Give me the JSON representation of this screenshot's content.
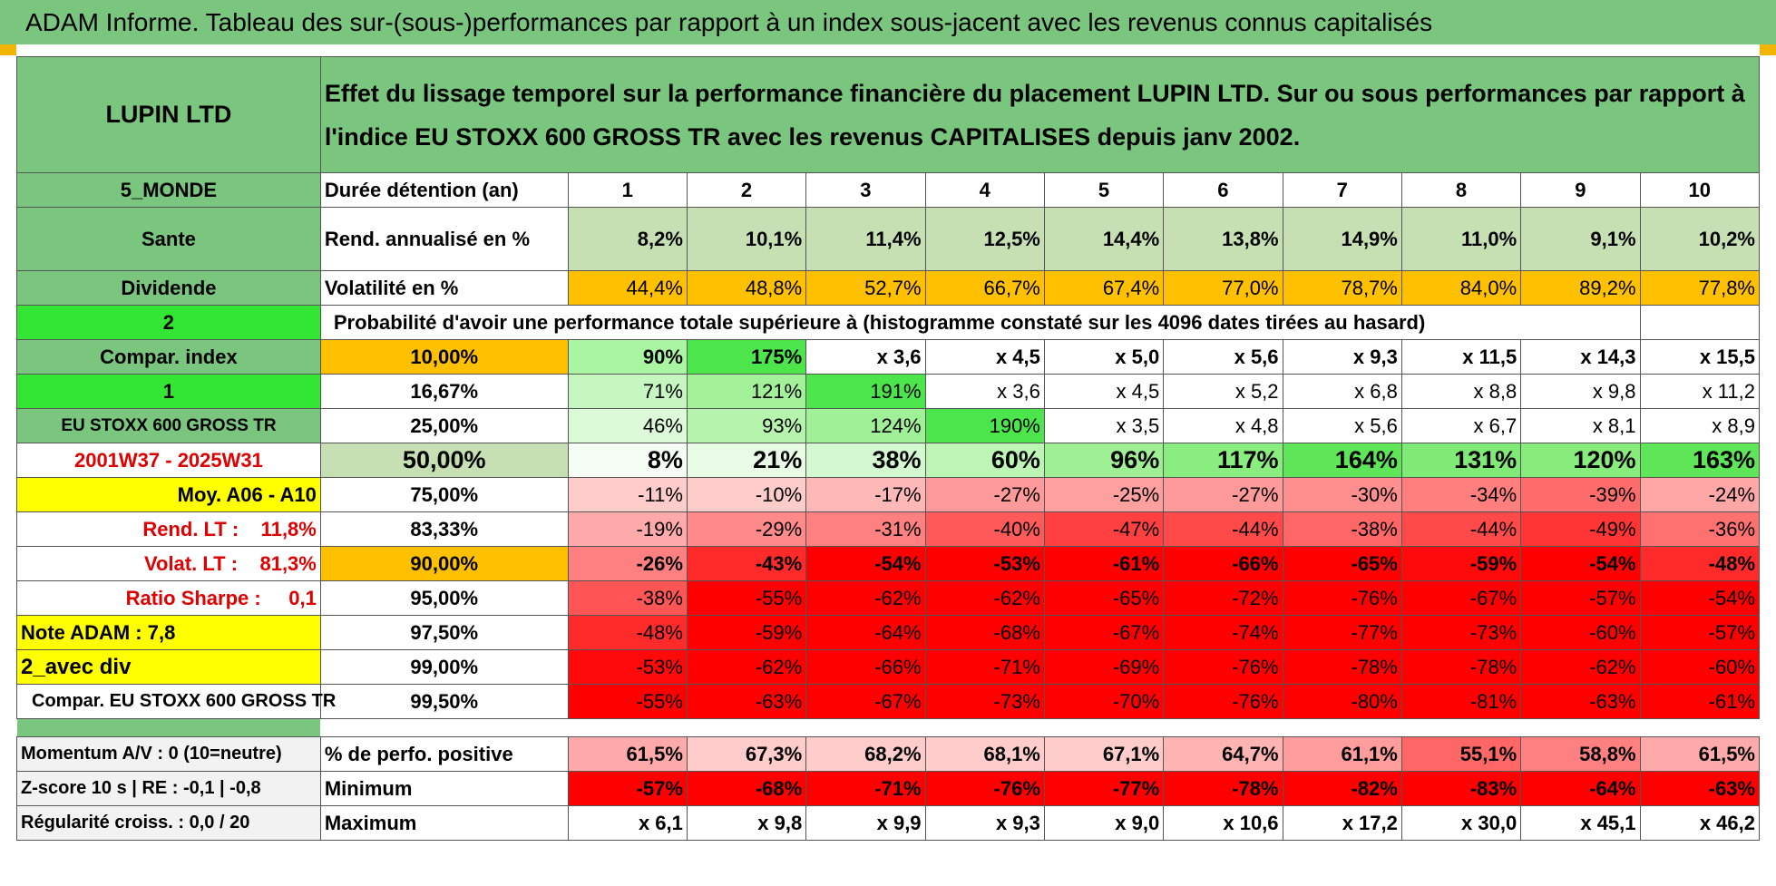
{
  "title": "ADAM Informe. Tableau des sur-(sous-)performances par rapport à un index sous-jacent avec les revenus connus capitalisés",
  "header": {
    "name": "LUPIN LTD",
    "description": "Effet du lissage temporel sur la performance financière du placement LUPIN LTD. Sur ou sous performances par rapport à l'indice EU STOXX 600 GROSS TR avec les revenus CAPITALISES depuis janv 2002."
  },
  "left_labels": {
    "region": "5_MONDE",
    "sector": "Sante",
    "type": "Dividende",
    "level_1": "2",
    "compar_index": "Compar. index",
    "level_2": "1",
    "index_name": "EU STOXX 600 GROSS TR",
    "period": "2001W37 - 2025W31",
    "moy": "Moy. A06 - A10",
    "rend_lt": "Rend. LT :    11,8%",
    "volat_lt": "Volat. LT :    81,3%",
    "sharpe": "Ratio Sharpe :     0,1",
    "note": "Note ADAM : 7,8",
    "avec_div": "2_avec div",
    "compar_full": "Compar. EU STOXX 600 GROSS TR"
  },
  "row_labels": {
    "duration": "Durée détention (an)",
    "rend": "Rend. annualisé en %",
    "vol": "Volatilité en %",
    "proba": "Probabilité d'avoir une performance totale supérieure à (histogramme constaté sur les 4096 dates tirées au hasard)"
  },
  "years": [
    "1",
    "2",
    "3",
    "4",
    "5",
    "6",
    "7",
    "8",
    "9",
    "10"
  ],
  "rend_values": [
    "8,2%",
    "10,1%",
    "11,4%",
    "12,5%",
    "14,4%",
    "13,8%",
    "14,9%",
    "11,0%",
    "9,1%",
    "10,2%"
  ],
  "vol_values": [
    "44,4%",
    "48,8%",
    "52,7%",
    "66,7%",
    "67,4%",
    "77,0%",
    "78,7%",
    "84,0%",
    "89,2%",
    "77,8%"
  ],
  "prob_rows": [
    {
      "pct": "10,00%",
      "values": [
        "90%",
        "175%",
        "x 3,6",
        "x 4,5",
        "x 5,0",
        "x 5,6",
        "x 9,3",
        "x 11,5",
        "x 14,3",
        "x 15,5"
      ]
    },
    {
      "pct": "16,67%",
      "values": [
        "71%",
        "121%",
        "191%",
        "x 3,6",
        "x 4,5",
        "x 5,2",
        "x 6,8",
        "x 8,8",
        "x 9,8",
        "x 11,2"
      ]
    },
    {
      "pct": "25,00%",
      "values": [
        "46%",
        "93%",
        "124%",
        "190%",
        "x 3,5",
        "x 4,8",
        "x 5,6",
        "x 6,7",
        "x 8,1",
        "x 8,9"
      ]
    },
    {
      "pct": "50,00%",
      "values": [
        "8%",
        "21%",
        "38%",
        "60%",
        "96%",
        "117%",
        "164%",
        "131%",
        "120%",
        "163%"
      ]
    },
    {
      "pct": "75,00%",
      "values": [
        "-11%",
        "-10%",
        "-17%",
        "-27%",
        "-25%",
        "-27%",
        "-30%",
        "-34%",
        "-39%",
        "-24%"
      ]
    },
    {
      "pct": "83,33%",
      "values": [
        "-19%",
        "-29%",
        "-31%",
        "-40%",
        "-47%",
        "-44%",
        "-38%",
        "-44%",
        "-49%",
        "-36%"
      ]
    },
    {
      "pct": "90,00%",
      "values": [
        "-26%",
        "-43%",
        "-54%",
        "-53%",
        "-61%",
        "-66%",
        "-65%",
        "-59%",
        "-54%",
        "-48%"
      ]
    },
    {
      "pct": "95,00%",
      "values": [
        "-38%",
        "-55%",
        "-62%",
        "-62%",
        "-65%",
        "-72%",
        "-76%",
        "-67%",
        "-57%",
        "-54%"
      ]
    },
    {
      "pct": "97,50%",
      "values": [
        "-48%",
        "-59%",
        "-64%",
        "-68%",
        "-67%",
        "-74%",
        "-77%",
        "-73%",
        "-60%",
        "-57%"
      ]
    },
    {
      "pct": "99,00%",
      "values": [
        "-53%",
        "-62%",
        "-66%",
        "-71%",
        "-69%",
        "-76%",
        "-78%",
        "-78%",
        "-62%",
        "-60%"
      ]
    },
    {
      "pct": "99,50%",
      "values": [
        "-55%",
        "-63%",
        "-67%",
        "-73%",
        "-70%",
        "-76%",
        "-80%",
        "-81%",
        "-63%",
        "-61%"
      ]
    }
  ],
  "bottom": {
    "momentum": "Momentum A/V : 0 (10=neutre)",
    "zscore": "Z-score 10 s | RE : -0,1 | -0,8",
    "regularite": "Régularité croiss. : 0,0 / 20",
    "pos_label": "% de perfo. positive",
    "min_label": "Minimum",
    "max_label": "Maximum",
    "pos_values": [
      "61,5%",
      "67,3%",
      "68,2%",
      "68,1%",
      "67,1%",
      "64,7%",
      "61,1%",
      "55,1%",
      "58,8%",
      "61,5%"
    ],
    "min_values": [
      "-57%",
      "-68%",
      "-71%",
      "-76%",
      "-77%",
      "-78%",
      "-82%",
      "-83%",
      "-64%",
      "-63%"
    ],
    "max_values": [
      "x 6,1",
      "x 9,8",
      "x 9,9",
      "x 9,3",
      "x 9,0",
      "x 10,6",
      "x 17,2",
      "x 30,0",
      "x 45,1",
      "x 46,2"
    ]
  },
  "colors": {
    "header_green": "#7bc67e",
    "light_green": "#c6e0b4",
    "bright_green": "#33e633",
    "orange": "#ffc000",
    "yellow": "#ffff00",
    "red": "#ff0000"
  },
  "cell_colors": {
    "rend": [
      "#c6e0b4",
      "#c6e0b4",
      "#c6e0b4",
      "#c6e0b4",
      "#c6e0b4",
      "#c6e0b4",
      "#c6e0b4",
      "#c6e0b4",
      "#c6e0b4",
      "#c6e0b4"
    ],
    "vol": [
      "#ffc000",
      "#ffc000",
      "#ffc000",
      "#ffc000",
      "#ffc000",
      "#ffc000",
      "#ffc000",
      "#ffc000",
      "#ffc000",
      "#ffc000"
    ],
    "prob": [
      [
        "#a9f5a2",
        "#4ce64c",
        "#ffffff",
        "#ffffff",
        "#ffffff",
        "#ffffff",
        "#ffffff",
        "#ffffff",
        "#ffffff",
        "#ffffff"
      ],
      [
        "#c6f7c0",
        "#a3f29a",
        "#4ce64c",
        "#ffffff",
        "#ffffff",
        "#ffffff",
        "#ffffff",
        "#ffffff",
        "#ffffff",
        "#ffffff"
      ],
      [
        "#dcfad7",
        "#b6f3ad",
        "#9ff096",
        "#4ce64c",
        "#ffffff",
        "#ffffff",
        "#ffffff",
        "#ffffff",
        "#ffffff",
        "#ffffff"
      ],
      [
        "#f6fdf4",
        "#e8fbe4",
        "#d4f8cf",
        "#bdf5b5",
        "#9fef95",
        "#8aed7f",
        "#5fe658",
        "#7fea75",
        "#88ec7d",
        "#5fe658"
      ],
      [
        "#ffcccc",
        "#ffcccc",
        "#ffb8b8",
        "#ff9a9a",
        "#ffa0a0",
        "#ff9a9a",
        "#ff8e8e",
        "#ff7e7e",
        "#ff6c6c",
        "#ffa6a6"
      ],
      [
        "#ffaaaa",
        "#ff8a8a",
        "#ff8080",
        "#ff5a5a",
        "#ff4040",
        "#ff4a4a",
        "#ff6666",
        "#ff4a4a",
        "#ff3434",
        "#ff7070"
      ],
      [
        "#ff8080",
        "#ff2b2b",
        "#ff0000",
        "#ff0000",
        "#ff0000",
        "#ff0000",
        "#ff0000",
        "#ff0a0a",
        "#ff0000",
        "#ff2a2a"
      ],
      [
        "#ff5555",
        "#ff0000",
        "#ff0000",
        "#ff0000",
        "#ff0000",
        "#ff0000",
        "#ff0000",
        "#ff0000",
        "#ff0000",
        "#ff0000"
      ],
      [
        "#ff2a2a",
        "#ff0000",
        "#ff0000",
        "#ff0000",
        "#ff0000",
        "#ff0000",
        "#ff0000",
        "#ff0000",
        "#ff0000",
        "#ff0000"
      ],
      [
        "#ff0a0a",
        "#ff0000",
        "#ff0000",
        "#ff0000",
        "#ff0000",
        "#ff0000",
        "#ff0000",
        "#ff0000",
        "#ff0000",
        "#ff0000"
      ],
      [
        "#ff0000",
        "#ff0000",
        "#ff0000",
        "#ff0000",
        "#ff0000",
        "#ff0000",
        "#ff0000",
        "#ff0000",
        "#ff0000",
        "#ff0000"
      ]
    ],
    "pos": [
      "#ffaaaa",
      "#ffcccc",
      "#ffcccc",
      "#ffcccc",
      "#ffcccc",
      "#ffb4b4",
      "#ff9c9c",
      "#ff6666",
      "#ff8080",
      "#ffaaaa"
    ],
    "min": [
      "#ff0000",
      "#ff0000",
      "#ff0000",
      "#ff0000",
      "#ff0000",
      "#ff0000",
      "#ff0000",
      "#ff0000",
      "#ff0000",
      "#ff0000"
    ],
    "max": [
      "#ffffff",
      "#ffffff",
      "#ffffff",
      "#ffffff",
      "#ffffff",
      "#ffffff",
      "#ffffff",
      "#ffffff",
      "#ffffff",
      "#ffffff"
    ]
  }
}
